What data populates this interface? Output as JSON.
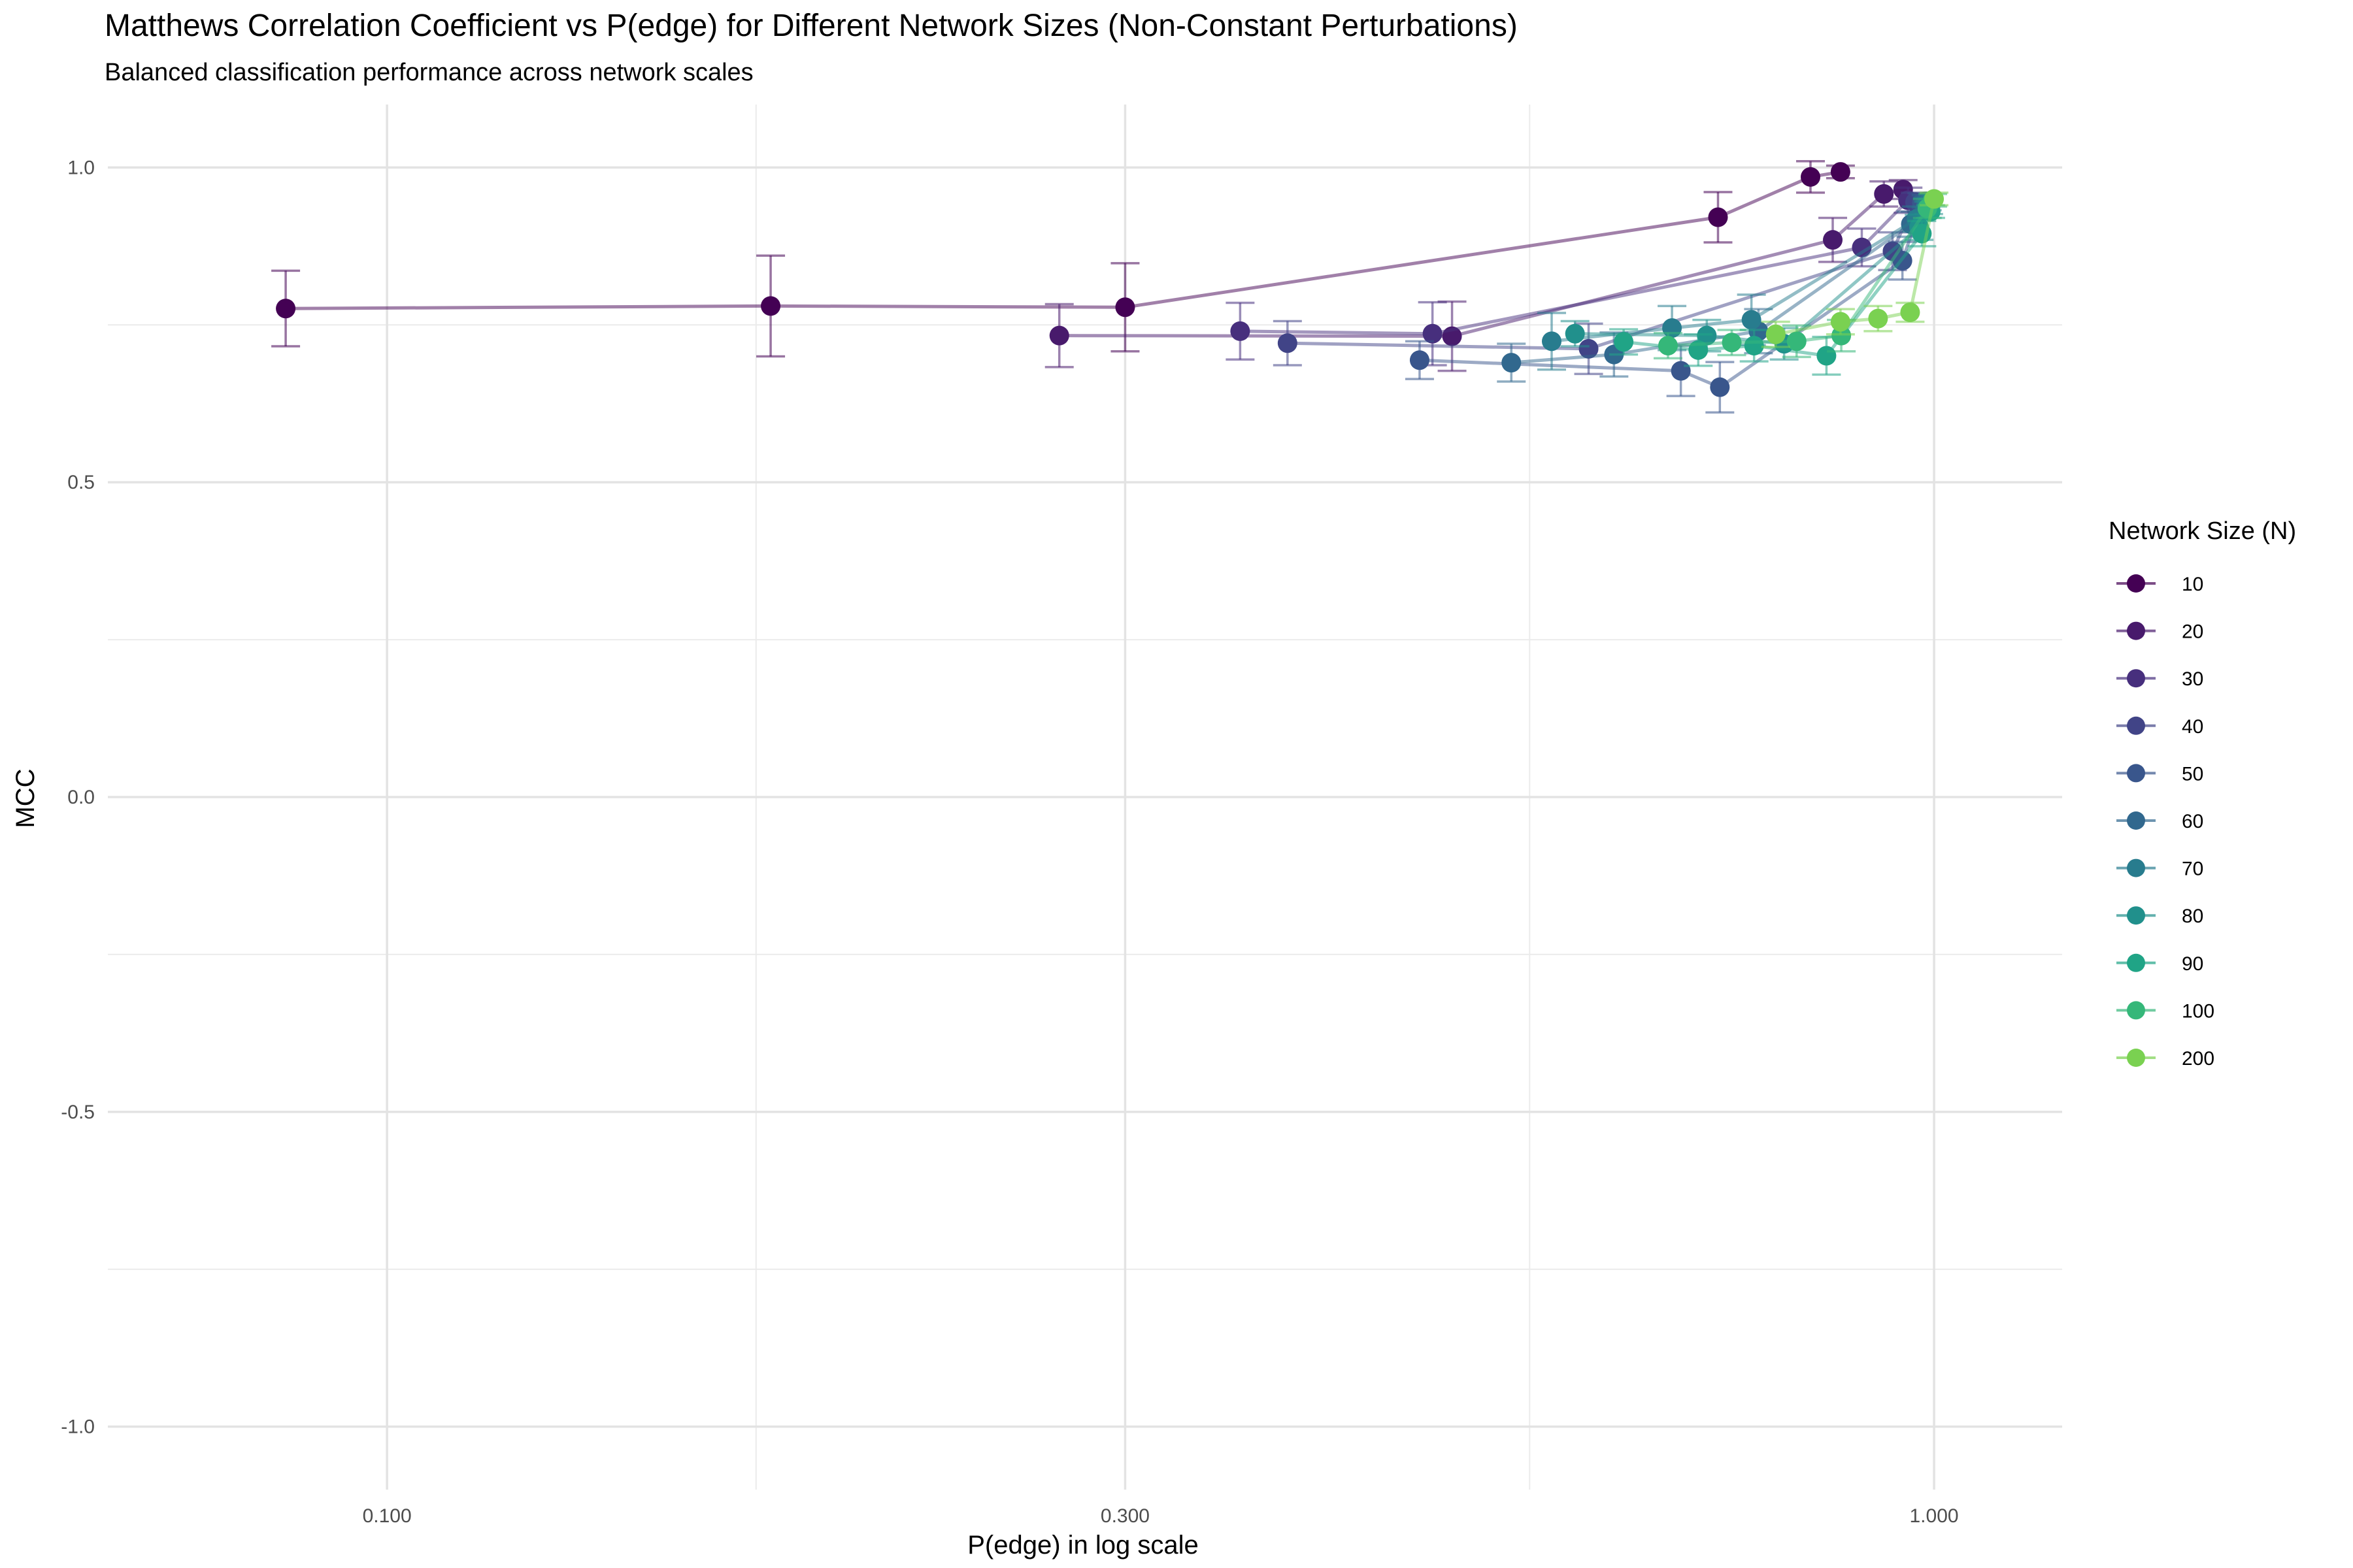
{
  "chart_data": {
    "type": "scatter",
    "title": "Matthews Correlation Coefficient vs P(edge) for Different Network Sizes (Non-Constant Perturbations)",
    "subtitle": "Balanced classification performance across network scales",
    "xlabel": "P(edge) in log scale",
    "ylabel": "MCC",
    "x_scale": "log",
    "xlim": [
      0.066,
      1.21
    ],
    "ylim": [
      -1.1,
      1.1
    ],
    "x_ticks": [
      0.1,
      0.3,
      1.0
    ],
    "x_tick_labels": [
      "0.100",
      "0.300",
      "1.000"
    ],
    "y_ticks": [
      1.0,
      0.5,
      0.0,
      -0.5,
      -1.0
    ],
    "y_tick_labels": [
      "1.0",
      "0.5",
      "0.0",
      "-0.5",
      "-1.0"
    ],
    "grid": true,
    "legend_title": "Network Size (N)",
    "legend_position": "right",
    "series": [
      {
        "name": "10",
        "color": "#440154",
        "points": [
          {
            "x": 0.086,
            "y": 0.776,
            "err": 0.06
          },
          {
            "x": 0.177,
            "y": 0.78,
            "err": 0.08
          },
          {
            "x": 0.3,
            "y": 0.778,
            "err": 0.07
          },
          {
            "x": 0.725,
            "y": 0.921,
            "err": 0.04
          },
          {
            "x": 0.832,
            "y": 0.985,
            "err": 0.025
          },
          {
            "x": 0.87,
            "y": 0.993,
            "err": 0.01
          }
        ]
      },
      {
        "name": "20",
        "color": "#481A6C",
        "points": [
          {
            "x": 0.272,
            "y": 0.733,
            "err": 0.05
          },
          {
            "x": 0.488,
            "y": 0.732,
            "err": 0.055
          },
          {
            "x": 0.86,
            "y": 0.885,
            "err": 0.035
          },
          {
            "x": 0.928,
            "y": 0.958,
            "err": 0.02
          },
          {
            "x": 0.955,
            "y": 0.965,
            "err": 0.015
          }
        ]
      },
      {
        "name": "30",
        "color": "#472F7D",
        "points": [
          {
            "x": 0.356,
            "y": 0.74,
            "err": 0.045
          },
          {
            "x": 0.474,
            "y": 0.736,
            "err": 0.05
          },
          {
            "x": 0.898,
            "y": 0.873,
            "err": 0.03
          },
          {
            "x": 0.962,
            "y": 0.948,
            "err": 0.02
          }
        ]
      },
      {
        "name": "40",
        "color": "#414487",
        "points": [
          {
            "x": 0.382,
            "y": 0.721,
            "err": 0.035
          },
          {
            "x": 0.598,
            "y": 0.712,
            "err": 0.04
          },
          {
            "x": 0.94,
            "y": 0.867,
            "err": 0.03
          },
          {
            "x": 0.972,
            "y": 0.945,
            "err": 0.015
          }
        ]
      },
      {
        "name": "50",
        "color": "#39568C",
        "points": [
          {
            "x": 0.465,
            "y": 0.694,
            "err": 0.03
          },
          {
            "x": 0.686,
            "y": 0.677,
            "err": 0.04
          },
          {
            "x": 0.727,
            "y": 0.651,
            "err": 0.04
          },
          {
            "x": 0.954,
            "y": 0.852,
            "err": 0.03
          },
          {
            "x": 0.982,
            "y": 0.944,
            "err": 0.015
          }
        ]
      },
      {
        "name": "60",
        "color": "#31688E",
        "points": [
          {
            "x": 0.533,
            "y": 0.69,
            "err": 0.03
          },
          {
            "x": 0.621,
            "y": 0.703,
            "err": 0.035
          },
          {
            "x": 0.77,
            "y": 0.74,
            "err": 0.035
          },
          {
            "x": 0.966,
            "y": 0.91,
            "err": 0.02
          },
          {
            "x": 0.988,
            "y": 0.946,
            "err": 0.01
          }
        ]
      },
      {
        "name": "70",
        "color": "#287C8E",
        "points": [
          {
            "x": 0.566,
            "y": 0.724,
            "err": 0.045
          },
          {
            "x": 0.677,
            "y": 0.745,
            "err": 0.035
          },
          {
            "x": 0.762,
            "y": 0.758,
            "err": 0.04
          },
          {
            "x": 0.974,
            "y": 0.918,
            "err": 0.02
          },
          {
            "x": 0.99,
            "y": 0.942,
            "err": 0.01
          }
        ]
      },
      {
        "name": "80",
        "color": "#21908C",
        "points": [
          {
            "x": 0.586,
            "y": 0.736,
            "err": 0.02
          },
          {
            "x": 0.713,
            "y": 0.733,
            "err": 0.025
          },
          {
            "x": 0.8,
            "y": 0.72,
            "err": 0.025
          },
          {
            "x": 0.978,
            "y": 0.905,
            "err": 0.02
          },
          {
            "x": 0.992,
            "y": 0.936,
            "err": 0.01
          }
        ]
      },
      {
        "name": "90",
        "color": "#20A486",
        "points": [
          {
            "x": 0.63,
            "y": 0.723,
            "err": 0.02
          },
          {
            "x": 0.704,
            "y": 0.71,
            "err": 0.025
          },
          {
            "x": 0.765,
            "y": 0.717,
            "err": 0.025
          },
          {
            "x": 0.852,
            "y": 0.701,
            "err": 0.03
          },
          {
            "x": 0.982,
            "y": 0.895,
            "err": 0.02
          },
          {
            "x": 0.995,
            "y": 0.93,
            "err": 0.01
          }
        ]
      },
      {
        "name": "100",
        "color": "#35B779",
        "points": [
          {
            "x": 0.673,
            "y": 0.717,
            "err": 0.02
          },
          {
            "x": 0.74,
            "y": 0.722,
            "err": 0.02
          },
          {
            "x": 0.815,
            "y": 0.724,
            "err": 0.025
          },
          {
            "x": 0.871,
            "y": 0.733,
            "err": 0.025
          },
          {
            "x": 0.99,
            "y": 0.935,
            "err": 0.015
          },
          {
            "x": 0.998,
            "y": 0.948,
            "err": 0.01
          }
        ]
      },
      {
        "name": "200",
        "color": "#7AD151",
        "points": [
          {
            "x": 0.79,
            "y": 0.735,
            "err": 0.02
          },
          {
            "x": 0.87,
            "y": 0.755,
            "err": 0.02
          },
          {
            "x": 0.92,
            "y": 0.76,
            "err": 0.02
          },
          {
            "x": 0.965,
            "y": 0.77,
            "err": 0.015
          },
          {
            "x": 1.0,
            "y": 0.95,
            "err": 0.01
          }
        ]
      }
    ]
  }
}
